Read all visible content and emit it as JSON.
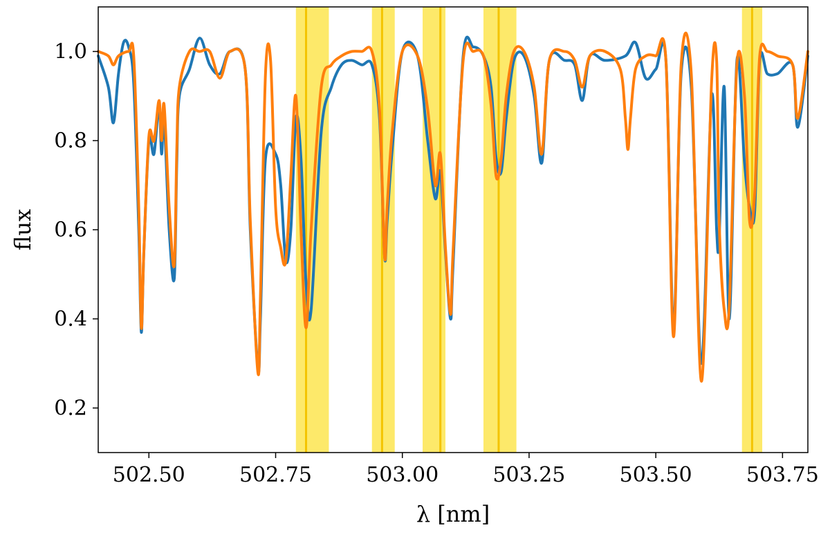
{
  "chart_data": {
    "type": "line",
    "xlabel": "λ [nm]",
    "ylabel": "flux",
    "xlim": [
      502.4,
      503.8
    ],
    "ylim": [
      0.1,
      1.1
    ],
    "xticks": [
      502.5,
      502.75,
      503.0,
      503.25,
      503.5,
      503.75
    ],
    "xtick_labels": [
      "502.50",
      "502.75",
      "503.00",
      "503.25",
      "503.50",
      "503.75"
    ],
    "yticks": [
      0.2,
      0.4,
      0.6,
      0.8,
      1.0
    ],
    "ytick_labels": [
      "0.2",
      "0.4",
      "0.6",
      "0.8",
      "1.0"
    ],
    "grid": false,
    "legend": "none",
    "highlight_bands": [
      {
        "x0": 502.79,
        "x1": 502.855,
        "center": 502.81
      },
      {
        "x0": 502.94,
        "x1": 502.985,
        "center": 502.96
      },
      {
        "x0": 503.04,
        "x1": 503.085,
        "center": 503.075
      },
      {
        "x0": 503.16,
        "x1": 503.225,
        "center": 503.19
      },
      {
        "x0": 503.67,
        "x1": 503.71,
        "center": 503.69
      }
    ],
    "colors": {
      "band_fill": "#fde96a",
      "band_center": "#f4c400",
      "observed": "#1f77b4",
      "model": "#ff7f0e"
    },
    "series": [
      {
        "color": "#1f77b4",
        "x": [
          502.4,
          502.42,
          502.43,
          502.44,
          502.45,
          502.46,
          502.47,
          502.48,
          502.485,
          502.49,
          502.5,
          502.51,
          502.52,
          502.525,
          502.53,
          502.54,
          502.55,
          502.555,
          502.56,
          502.58,
          502.6,
          502.62,
          502.64,
          502.66,
          502.69,
          502.7,
          502.715,
          502.72,
          502.73,
          502.75,
          502.76,
          502.77,
          502.78,
          502.79,
          502.8,
          502.81,
          502.82,
          502.84,
          502.86,
          502.88,
          502.9,
          502.92,
          502.94,
          502.955,
          502.965,
          502.97,
          502.98,
          503.0,
          503.03,
          503.05,
          503.065,
          503.075,
          503.085,
          503.095,
          503.1,
          503.12,
          503.14,
          503.16,
          503.175,
          503.185,
          503.195,
          503.205,
          503.22,
          503.24,
          503.26,
          503.275,
          503.29,
          503.32,
          503.34,
          503.355,
          503.37,
          503.4,
          503.44,
          503.46,
          503.48,
          503.5,
          503.52,
          503.535,
          503.55,
          503.57,
          503.59,
          503.61,
          503.62,
          503.625,
          503.635,
          503.645,
          503.66,
          503.675,
          503.685,
          503.695,
          503.705,
          503.72,
          503.74,
          503.77,
          503.78,
          503.8
        ],
        "y": [
          0.99,
          0.92,
          0.84,
          0.95,
          1.02,
          1.01,
          0.93,
          0.6,
          0.37,
          0.55,
          0.8,
          0.77,
          0.88,
          0.77,
          0.85,
          0.6,
          0.49,
          0.75,
          0.9,
          0.96,
          1.03,
          0.97,
          0.95,
          1.0,
          0.96,
          0.6,
          0.29,
          0.4,
          0.76,
          0.77,
          0.7,
          0.53,
          0.6,
          0.85,
          0.76,
          0.48,
          0.42,
          0.82,
          0.92,
          0.97,
          0.98,
          0.97,
          0.97,
          0.85,
          0.54,
          0.62,
          0.78,
          1.0,
          0.99,
          0.8,
          0.67,
          0.73,
          0.55,
          0.4,
          0.52,
          0.99,
          1.01,
          0.99,
          0.92,
          0.76,
          0.73,
          0.85,
          0.98,
          0.99,
          0.9,
          0.75,
          0.98,
          0.98,
          0.97,
          0.89,
          0.99,
          0.98,
          0.99,
          1.02,
          0.94,
          0.96,
          0.98,
          0.38,
          0.95,
          0.92,
          0.3,
          0.9,
          0.6,
          0.58,
          0.92,
          0.4,
          0.98,
          0.75,
          0.65,
          0.64,
          0.98,
          0.95,
          0.95,
          0.97,
          0.83,
          0.99
        ]
      },
      {
        "color": "#ff7f0e",
        "x": [
          502.4,
          502.42,
          502.43,
          502.44,
          502.46,
          502.47,
          502.48,
          502.485,
          502.49,
          502.5,
          502.51,
          502.52,
          502.525,
          502.53,
          502.54,
          502.55,
          502.555,
          502.56,
          502.58,
          502.6,
          502.62,
          502.64,
          502.66,
          502.69,
          502.7,
          502.715,
          502.72,
          502.73,
          502.74,
          502.75,
          502.76,
          502.77,
          502.78,
          502.79,
          502.8,
          502.81,
          502.82,
          502.84,
          502.86,
          502.88,
          502.9,
          502.92,
          502.94,
          502.955,
          502.965,
          502.97,
          502.98,
          503.0,
          503.03,
          503.05,
          503.065,
          503.075,
          503.085,
          503.095,
          503.1,
          503.12,
          503.14,
          503.16,
          503.175,
          503.185,
          503.195,
          503.205,
          503.22,
          503.24,
          503.26,
          503.275,
          503.29,
          503.32,
          503.34,
          503.355,
          503.37,
          503.4,
          503.43,
          503.44,
          503.445,
          503.45,
          503.46,
          503.48,
          503.5,
          503.52,
          503.535,
          503.55,
          503.57,
          503.59,
          503.61,
          503.62,
          503.625,
          503.635,
          503.645,
          503.66,
          503.675,
          503.685,
          503.695,
          503.705,
          503.72,
          503.74,
          503.77,
          503.78,
          503.8
        ],
        "y": [
          1.0,
          0.99,
          0.97,
          0.99,
          1.0,
          0.99,
          0.65,
          0.38,
          0.55,
          0.81,
          0.8,
          0.89,
          0.8,
          0.88,
          0.65,
          0.52,
          0.78,
          0.92,
          1.0,
          1.0,
          1.0,
          0.94,
          1.0,
          0.96,
          0.62,
          0.28,
          0.45,
          0.95,
          0.98,
          0.65,
          0.56,
          0.53,
          0.72,
          0.9,
          0.6,
          0.38,
          0.6,
          0.92,
          0.97,
          0.99,
          1.0,
          1.0,
          1.0,
          0.87,
          0.54,
          0.65,
          0.82,
          1.0,
          0.99,
          0.87,
          0.7,
          0.77,
          0.56,
          0.41,
          0.55,
          0.98,
          1.0,
          0.99,
          0.88,
          0.72,
          0.76,
          0.9,
          1.0,
          1.0,
          0.92,
          0.77,
          0.98,
          1.0,
          0.98,
          0.92,
          0.99,
          1.0,
          0.96,
          0.85,
          0.78,
          0.85,
          0.96,
          0.99,
          0.99,
          0.98,
          0.36,
          0.97,
          0.95,
          0.26,
          0.93,
          0.98,
          0.62,
          0.42,
          0.43,
          0.97,
          0.9,
          0.62,
          0.68,
          0.99,
          1.0,
          0.99,
          0.97,
          0.85,
          1.0
        ]
      }
    ]
  }
}
